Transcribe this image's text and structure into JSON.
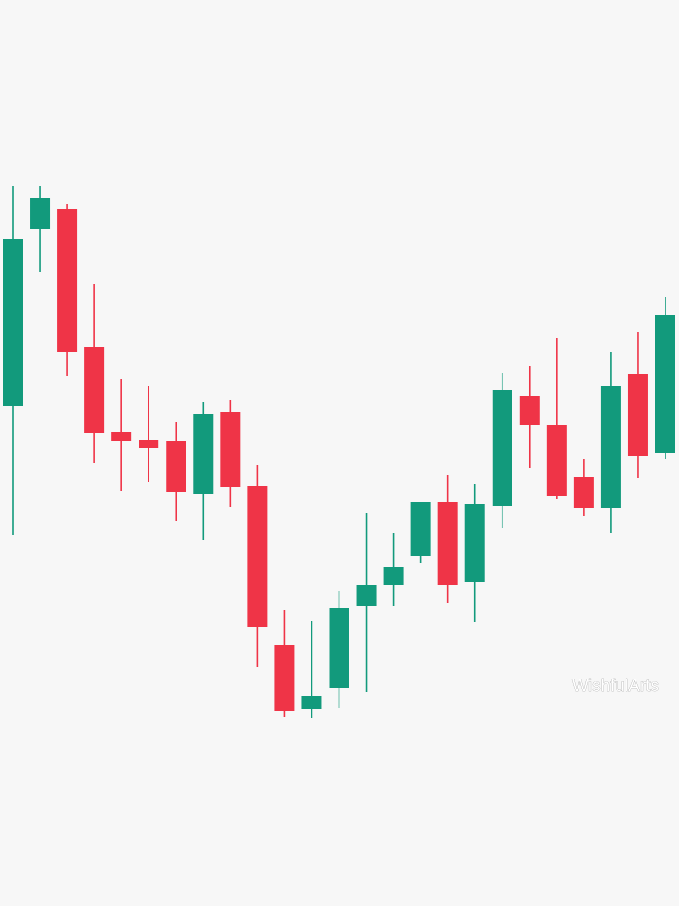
{
  "chart_data": {
    "type": "candlestick",
    "watermark": "WishfulArts",
    "up_color": "#129a7c",
    "down_color": "#ef3447",
    "ylim": [
      0,
      1000
    ],
    "open": [
      552,
      747,
      769,
      617,
      523,
      514,
      513,
      455,
      545,
      464,
      288,
      217,
      241,
      331,
      354,
      386,
      446,
      358,
      441,
      563,
      531,
      473,
      439,
      587,
      500
    ],
    "high": [
      795,
      795,
      775,
      686,
      582,
      574,
      534,
      556,
      558,
      487,
      327,
      315,
      348,
      434,
      412,
      446,
      476,
      466,
      588,
      596,
      627,
      493,
      612,
      634,
      672
    ],
    "low": [
      410,
      700,
      585,
      489,
      458,
      468,
      425,
      404,
      440,
      264,
      209,
      208,
      219,
      236,
      331,
      379,
      334,
      314,
      417,
      483,
      449,
      430,
      412,
      472,
      493
    ],
    "close": [
      736,
      782,
      612,
      522,
      513,
      506,
      457,
      543,
      463,
      308,
      215,
      232,
      329,
      354,
      374,
      446,
      354,
      444,
      570,
      531,
      453,
      439,
      574,
      497,
      652
    ]
  }
}
